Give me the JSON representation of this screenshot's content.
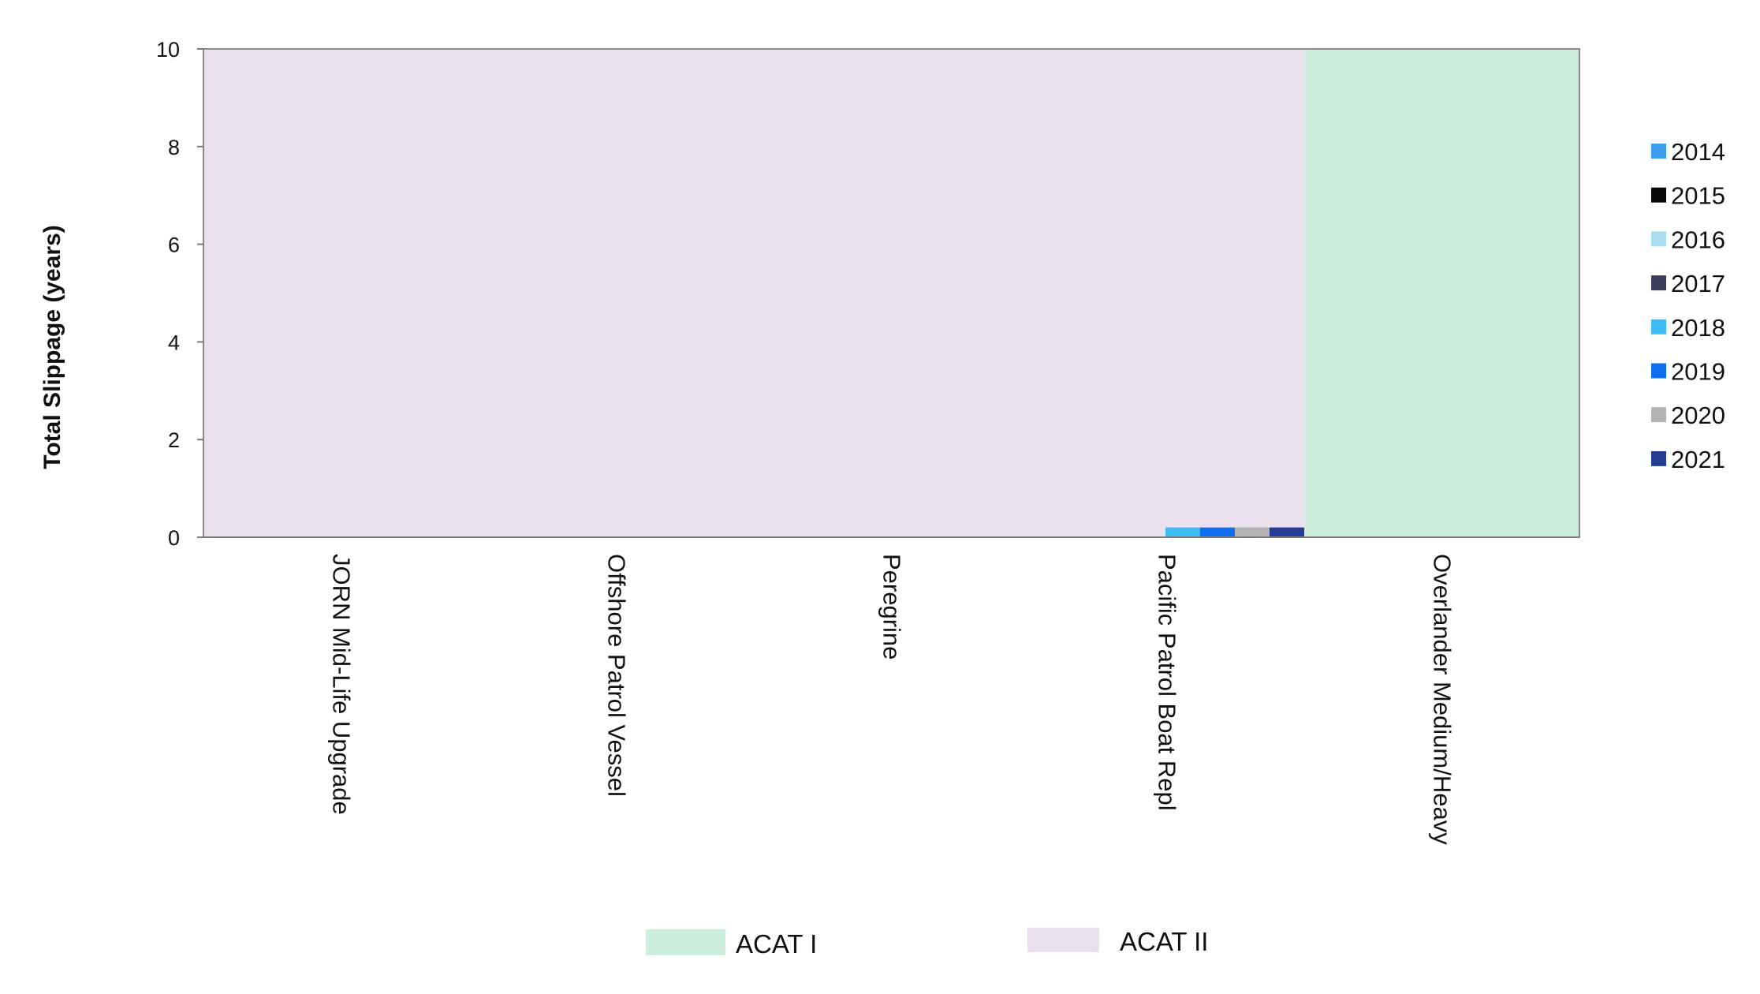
{
  "chart_data": {
    "type": "bar",
    "title": "",
    "xlabel": "",
    "ylabel": "Total Slippage (years)",
    "ylim": [
      0,
      10
    ],
    "yticks": [
      0,
      2,
      4,
      6,
      8,
      10
    ],
    "grid": false,
    "categories": [
      "JORN Mid-Life Upgrade",
      "Offshore Patrol Vessel",
      "Peregrine",
      "Pacific Patrol Boat Repl",
      "Overlander Medium/Heavy"
    ],
    "series": [
      {
        "name": "2014",
        "color": "#3d9cf0",
        "values": [
          0,
          0,
          0,
          0,
          0
        ]
      },
      {
        "name": "2015",
        "color": "#0a0a0a",
        "values": [
          0,
          0,
          0,
          0,
          0
        ]
      },
      {
        "name": "2016",
        "color": "#a8dcf0",
        "values": [
          0,
          0,
          0,
          0,
          0
        ]
      },
      {
        "name": "2017",
        "color": "#3a3f5c",
        "values": [
          0,
          0,
          0,
          0,
          0
        ]
      },
      {
        "name": "2018",
        "color": "#3cbcf4",
        "values": [
          0,
          0,
          0,
          0.2,
          0
        ]
      },
      {
        "name": "2019",
        "color": "#0d6ef0",
        "values": [
          0,
          0,
          0,
          0.2,
          0
        ]
      },
      {
        "name": "2020",
        "color": "#b4b4b4",
        "values": [
          0,
          0,
          0,
          0.2,
          0
        ]
      },
      {
        "name": "2021",
        "color": "#233c94",
        "values": [
          0,
          0,
          0,
          0.2,
          0
        ]
      }
    ],
    "background_bands": [
      {
        "label": "ACAT I",
        "color": "#cdeedd",
        "categories": [
          "Overlander Medium/Heavy"
        ]
      },
      {
        "label": "ACAT II",
        "color": "#ebe0ee",
        "categories": [
          "JORN Mid-Life Upgrade",
          "Offshore Patrol Vessel",
          "Peregrine",
          "Pacific Patrol Boat Repl"
        ]
      }
    ],
    "legend_position": "right",
    "band_legend_position": "bottom"
  }
}
